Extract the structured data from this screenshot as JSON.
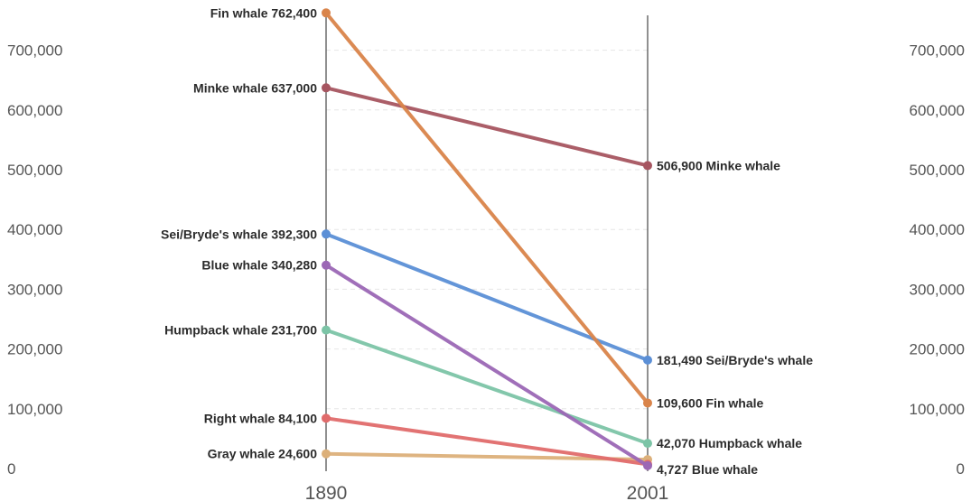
{
  "chart_data": {
    "type": "line",
    "chart_style": "slope",
    "x": [
      "1890",
      "2001"
    ],
    "ylim": [
      0,
      800000
    ],
    "yticks": [
      "0",
      "100,000",
      "200,000",
      "300,000",
      "400,000",
      "500,000",
      "600,000",
      "700,000"
    ],
    "ytick_values": [
      0,
      100000,
      200000,
      300000,
      400000,
      500000,
      600000,
      700000
    ],
    "grid": true,
    "series": [
      {
        "name": "Fin whale",
        "values": [
          762400,
          109600
        ],
        "labels": [
          "762,400",
          "109,600"
        ],
        "color": "#d9844a"
      },
      {
        "name": "Minke whale",
        "values": [
          637000,
          506900
        ],
        "labels": [
          "637,000",
          "506,900"
        ],
        "color": "#a65560"
      },
      {
        "name": "Sei/Bryde's whale",
        "values": [
          392300,
          181490
        ],
        "labels": [
          "392,300",
          "181,490"
        ],
        "color": "#5b8fd6"
      },
      {
        "name": "Blue whale",
        "values": [
          340280,
          4727
        ],
        "labels": [
          "340,280",
          "4,727"
        ],
        "color": "#9b67b5"
      },
      {
        "name": "Humpback whale",
        "values": [
          231700,
          42070
        ],
        "labels": [
          "231,700",
          "42,070"
        ],
        "color": "#7cc4a6"
      },
      {
        "name": "Right whale",
        "values": [
          84100,
          7000
        ],
        "labels": [
          "84,100",
          ""
        ],
        "color": "#e06b6b"
      },
      {
        "name": "Gray whale",
        "values": [
          24600,
          15000
        ],
        "labels": [
          "24,600",
          ""
        ],
        "color": "#dcb07a"
      }
    ],
    "end_labels": [
      "Minke whale",
      "Sei/Bryde's whale",
      "Fin whale",
      "Humpback whale",
      "Blue whale"
    ]
  }
}
